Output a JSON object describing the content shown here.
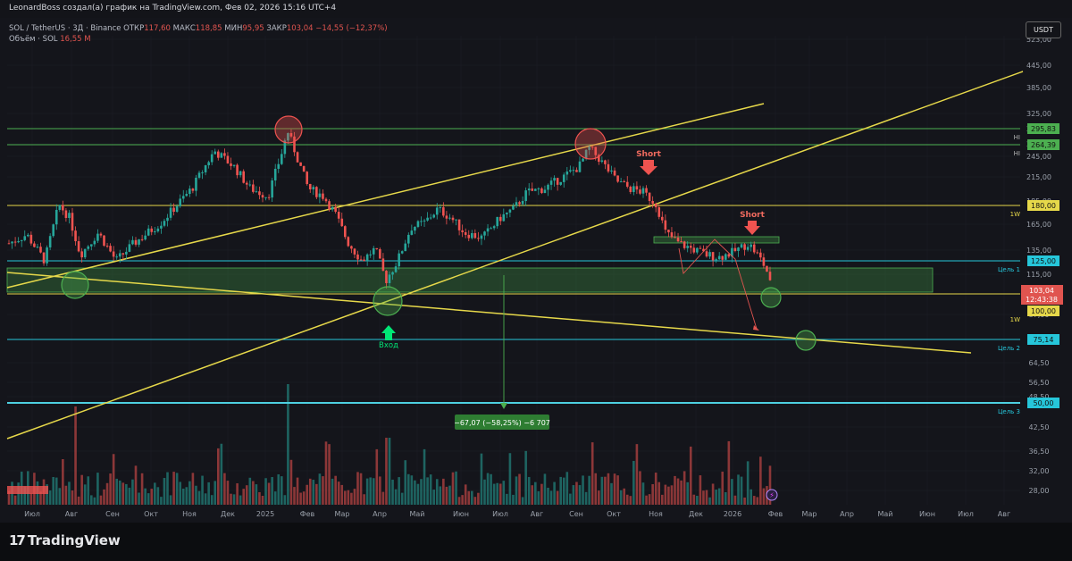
{
  "header": {
    "caption": "LeonardBoss создал(а) график на TradingView.com, Фев 02, 2026 15:16 UTC+4"
  },
  "legend": {
    "line1_symbol": "SOL / TetherUS · 3Д · Binance",
    "open_label": "ОТКР",
    "open_value": "117,60",
    "high_label": "МАКС",
    "high_value": "118,85",
    "low_label": "МИН",
    "low_value": "95,95",
    "close_label": "ЗАКР",
    "close_value": "103,04",
    "change": "−14,55 (−12,37%)",
    "volume_label": "Объём · SOL",
    "volume_value": "16,55 М"
  },
  "currency_button": "USDT",
  "price_axis": {
    "ticks": [
      "523,00",
      "445,00",
      "385,00",
      "325,00",
      "295,00",
      "265,00",
      "245,00",
      "215,00",
      "185,00",
      "165,00",
      "135,00",
      "115,00",
      "87,00",
      "64,50",
      "56,50",
      "48,50",
      "42,50",
      "36,50",
      "32,00",
      "28,00"
    ]
  },
  "time_axis": {
    "labels": [
      "Июл",
      "Авг",
      "Сен",
      "Окт",
      "Ноя",
      "Дек",
      "2025",
      "Фев",
      "Мар",
      "Апр",
      "Май",
      "Июн",
      "Июл",
      "Авг",
      "Сен",
      "Окт",
      "Ноя",
      "Дек",
      "2026",
      "Фев",
      "Мар",
      "Апр",
      "Май",
      "Июн",
      "Июл",
      "Авг"
    ]
  },
  "price_tags": [
    {
      "text": "295,83",
      "level": 295.83,
      "color": "#4caf50",
      "tag": "HI"
    },
    {
      "text": "264,39",
      "level": 264.39,
      "color": "#4caf50",
      "tag": "HI"
    },
    {
      "text": "180,00",
      "level": 180.0,
      "color": "#e6d84a",
      "tag": "1W"
    },
    {
      "text": "125,00",
      "level": 125.0,
      "color": "#26c6da",
      "tag": "Цель 1"
    },
    {
      "text": "100,00",
      "level": 100.0,
      "color": "#e6d84a",
      "tag": "1W"
    },
    {
      "text": "75,14",
      "level": 75.14,
      "color": "#26c6da",
      "tag": "Цель 2"
    },
    {
      "text": "50,00",
      "level": 50.0,
      "color": "#26c6da",
      "tag": "Цель 3"
    }
  ],
  "current_price": {
    "value": "103,04",
    "countdown": "12:43:38",
    "color": "#e0544f"
  },
  "annotations": {
    "short_1": "Short",
    "short_2": "Short",
    "entry": "Вход",
    "measure": "−67,07 (−58,25%) −6 707"
  },
  "footer": {
    "brand": "TradingView"
  },
  "colors": {
    "bull": "#26a69a",
    "bear": "#ef5350",
    "trend": "#e6d84a",
    "zone": "#4caf50",
    "target": "#26c6da"
  },
  "chart_data": {
    "type": "candlestick",
    "symbol": "SOL / TetherUS",
    "timeframe": "3Д",
    "exchange": "Binance",
    "y_scale": "log",
    "last_candle": {
      "open": 117.6,
      "high": 118.85,
      "low": 95.95,
      "close": 103.04
    },
    "levels": [
      295.83,
      264.39,
      180,
      125,
      100,
      75.14,
      50
    ],
    "volume_last": "16,55 М"
  }
}
